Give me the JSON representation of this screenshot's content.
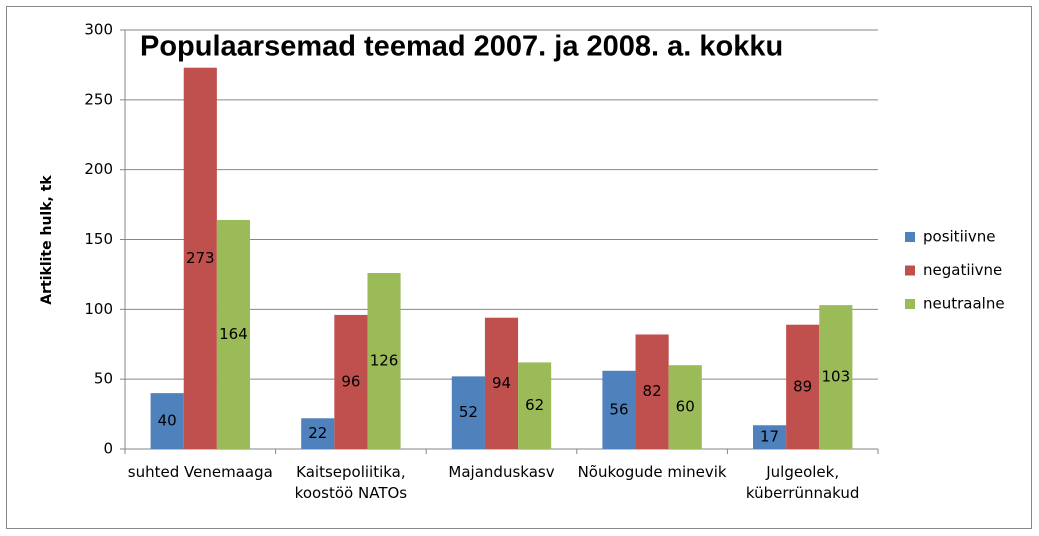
{
  "chart_data": {
    "type": "bar",
    "title": "Populaarsemad teemad 2007. ja 2008. a. kokku",
    "y_label": "Artiklite hulk, tk",
    "categories": [
      "suhted Venemaaga",
      "Kaitsepoliitika, koostöö NATOs",
      "Majanduskasv",
      "Nõukogude minevik",
      "Julgeolek, küberrünnakud"
    ],
    "series": [
      {
        "name": "positiivne",
        "color": "#4f81bd",
        "values": [
          40,
          22,
          52,
          56,
          17
        ]
      },
      {
        "name": "negatiivne",
        "color": "#c0504d",
        "values": [
          273,
          96,
          94,
          82,
          89
        ]
      },
      {
        "name": "neutraalne",
        "color": "#9bbb59",
        "values": [
          164,
          126,
          62,
          60,
          103
        ]
      }
    ],
    "ylim": [
      0,
      300
    ],
    "yticks": [
      0,
      50,
      100,
      150,
      200,
      250,
      300
    ],
    "grid": true,
    "legend": "right"
  }
}
